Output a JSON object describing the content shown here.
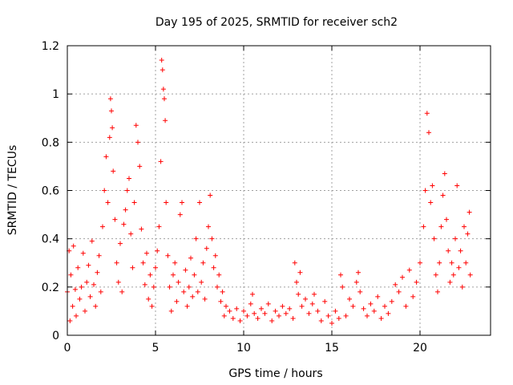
{
  "chart_data": {
    "type": "scatter",
    "title": "Day 195 of 2025, SRMTID for receiver sch2",
    "xlabel": "GPS time / hours",
    "ylabel": "SRMTID / TECUs",
    "xlim": [
      0,
      24
    ],
    "ylim": [
      0,
      1.2
    ],
    "xticks": [
      "0",
      "5",
      "10",
      "15",
      "20"
    ],
    "xtick_values": [
      0,
      5,
      10,
      15,
      20
    ],
    "yticks": [
      "0",
      "0.2",
      "0.4",
      "0.6",
      "0.8",
      "1",
      "1.2"
    ],
    "ytick_values": [
      0,
      0.2,
      0.4,
      0.6,
      0.8,
      1.0,
      1.2
    ],
    "grid": true,
    "marker": "+",
    "color": "#ff0000",
    "series": [
      {
        "name": "SRMTID",
        "points": [
          [
            0.0,
            0.18
          ],
          [
            0.1,
            0.35
          ],
          [
            0.15,
            0.06
          ],
          [
            0.2,
            0.25
          ],
          [
            0.3,
            0.12
          ],
          [
            0.35,
            0.37
          ],
          [
            0.45,
            0.19
          ],
          [
            0.5,
            0.08
          ],
          [
            0.6,
            0.28
          ],
          [
            0.7,
            0.15
          ],
          [
            0.8,
            0.2
          ],
          [
            0.9,
            0.34
          ],
          [
            1.0,
            0.1
          ],
          [
            1.1,
            0.22
          ],
          [
            1.2,
            0.29
          ],
          [
            1.3,
            0.16
          ],
          [
            1.4,
            0.39
          ],
          [
            1.5,
            0.21
          ],
          [
            1.6,
            0.12
          ],
          [
            1.7,
            0.26
          ],
          [
            1.8,
            0.33
          ],
          [
            1.9,
            0.18
          ],
          [
            2.0,
            0.45
          ],
          [
            2.1,
            0.6
          ],
          [
            2.2,
            0.74
          ],
          [
            2.3,
            0.55
          ],
          [
            2.4,
            0.82
          ],
          [
            2.45,
            0.98
          ],
          [
            2.5,
            0.93
          ],
          [
            2.55,
            0.86
          ],
          [
            2.6,
            0.68
          ],
          [
            2.7,
            0.48
          ],
          [
            2.8,
            0.3
          ],
          [
            2.9,
            0.22
          ],
          [
            3.0,
            0.38
          ],
          [
            3.1,
            0.18
          ],
          [
            3.2,
            0.46
          ],
          [
            3.3,
            0.52
          ],
          [
            3.4,
            0.6
          ],
          [
            3.5,
            0.65
          ],
          [
            3.6,
            0.42
          ],
          [
            3.7,
            0.28
          ],
          [
            3.8,
            0.55
          ],
          [
            3.9,
            0.87
          ],
          [
            4.0,
            0.8
          ],
          [
            4.1,
            0.7
          ],
          [
            4.2,
            0.44
          ],
          [
            4.3,
            0.3
          ],
          [
            4.4,
            0.21
          ],
          [
            4.5,
            0.34
          ],
          [
            4.6,
            0.15
          ],
          [
            4.7,
            0.25
          ],
          [
            4.8,
            0.12
          ],
          [
            4.9,
            0.2
          ],
          [
            5.0,
            0.28
          ],
          [
            5.1,
            0.35
          ],
          [
            5.2,
            0.45
          ],
          [
            5.3,
            0.72
          ],
          [
            5.35,
            1.14
          ],
          [
            5.4,
            1.1
          ],
          [
            5.45,
            1.02
          ],
          [
            5.5,
            0.98
          ],
          [
            5.55,
            0.89
          ],
          [
            5.6,
            0.55
          ],
          [
            5.7,
            0.33
          ],
          [
            5.8,
            0.2
          ],
          [
            5.9,
            0.1
          ],
          [
            6.0,
            0.25
          ],
          [
            6.1,
            0.3
          ],
          [
            6.2,
            0.14
          ],
          [
            6.3,
            0.22
          ],
          [
            6.4,
            0.5
          ],
          [
            6.5,
            0.55
          ],
          [
            6.6,
            0.18
          ],
          [
            6.7,
            0.27
          ],
          [
            6.8,
            0.12
          ],
          [
            6.9,
            0.2
          ],
          [
            7.0,
            0.32
          ],
          [
            7.1,
            0.16
          ],
          [
            7.2,
            0.25
          ],
          [
            7.3,
            0.4
          ],
          [
            7.4,
            0.18
          ],
          [
            7.5,
            0.55
          ],
          [
            7.6,
            0.22
          ],
          [
            7.7,
            0.3
          ],
          [
            7.8,
            0.15
          ],
          [
            7.9,
            0.36
          ],
          [
            8.0,
            0.45
          ],
          [
            8.1,
            0.58
          ],
          [
            8.2,
            0.4
          ],
          [
            8.3,
            0.28
          ],
          [
            8.4,
            0.33
          ],
          [
            8.5,
            0.2
          ],
          [
            8.6,
            0.25
          ],
          [
            8.7,
            0.14
          ],
          [
            8.8,
            0.18
          ],
          [
            8.9,
            0.08
          ],
          [
            9.0,
            0.12
          ],
          [
            9.2,
            0.1
          ],
          [
            9.4,
            0.07
          ],
          [
            9.6,
            0.11
          ],
          [
            9.8,
            0.06
          ],
          [
            10.0,
            0.1
          ],
          [
            10.2,
            0.08
          ],
          [
            10.4,
            0.13
          ],
          [
            10.5,
            0.17
          ],
          [
            10.6,
            0.09
          ],
          [
            10.8,
            0.07
          ],
          [
            11.0,
            0.11
          ],
          [
            11.2,
            0.09
          ],
          [
            11.4,
            0.13
          ],
          [
            11.6,
            0.06
          ],
          [
            11.8,
            0.1
          ],
          [
            12.0,
            0.08
          ],
          [
            12.2,
            0.12
          ],
          [
            12.4,
            0.09
          ],
          [
            12.6,
            0.11
          ],
          [
            12.8,
            0.07
          ],
          [
            12.9,
            0.3
          ],
          [
            13.0,
            0.22
          ],
          [
            13.1,
            0.17
          ],
          [
            13.2,
            0.26
          ],
          [
            13.3,
            0.12
          ],
          [
            13.5,
            0.15
          ],
          [
            13.7,
            0.09
          ],
          [
            13.9,
            0.13
          ],
          [
            14.0,
            0.17
          ],
          [
            14.2,
            0.1
          ],
          [
            14.4,
            0.06
          ],
          [
            14.6,
            0.14
          ],
          [
            14.8,
            0.08
          ],
          [
            15.0,
            0.05
          ],
          [
            15.2,
            0.1
          ],
          [
            15.4,
            0.07
          ],
          [
            15.5,
            0.25
          ],
          [
            15.6,
            0.2
          ],
          [
            15.8,
            0.08
          ],
          [
            16.0,
            0.15
          ],
          [
            16.2,
            0.12
          ],
          [
            16.4,
            0.22
          ],
          [
            16.5,
            0.26
          ],
          [
            16.6,
            0.18
          ],
          [
            16.8,
            0.11
          ],
          [
            17.0,
            0.08
          ],
          [
            17.2,
            0.13
          ],
          [
            17.4,
            0.1
          ],
          [
            17.6,
            0.16
          ],
          [
            17.8,
            0.07
          ],
          [
            18.0,
            0.12
          ],
          [
            18.2,
            0.09
          ],
          [
            18.4,
            0.14
          ],
          [
            18.6,
            0.21
          ],
          [
            18.8,
            0.18
          ],
          [
            19.0,
            0.24
          ],
          [
            19.2,
            0.12
          ],
          [
            19.4,
            0.27
          ],
          [
            19.6,
            0.16
          ],
          [
            19.8,
            0.22
          ],
          [
            20.0,
            0.3
          ],
          [
            20.2,
            0.45
          ],
          [
            20.3,
            0.6
          ],
          [
            20.4,
            0.92
          ],
          [
            20.5,
            0.84
          ],
          [
            20.6,
            0.55
          ],
          [
            20.7,
            0.62
          ],
          [
            20.8,
            0.4
          ],
          [
            20.9,
            0.25
          ],
          [
            21.0,
            0.18
          ],
          [
            21.1,
            0.3
          ],
          [
            21.2,
            0.45
          ],
          [
            21.3,
            0.58
          ],
          [
            21.4,
            0.67
          ],
          [
            21.5,
            0.48
          ],
          [
            21.6,
            0.35
          ],
          [
            21.7,
            0.22
          ],
          [
            21.8,
            0.3
          ],
          [
            21.9,
            0.25
          ],
          [
            22.0,
            0.4
          ],
          [
            22.1,
            0.62
          ],
          [
            22.2,
            0.28
          ],
          [
            22.3,
            0.35
          ],
          [
            22.4,
            0.2
          ],
          [
            22.5,
            0.45
          ],
          [
            22.6,
            0.3
          ],
          [
            22.7,
            0.42
          ],
          [
            22.8,
            0.51
          ],
          [
            22.85,
            0.25
          ]
        ]
      }
    ]
  }
}
